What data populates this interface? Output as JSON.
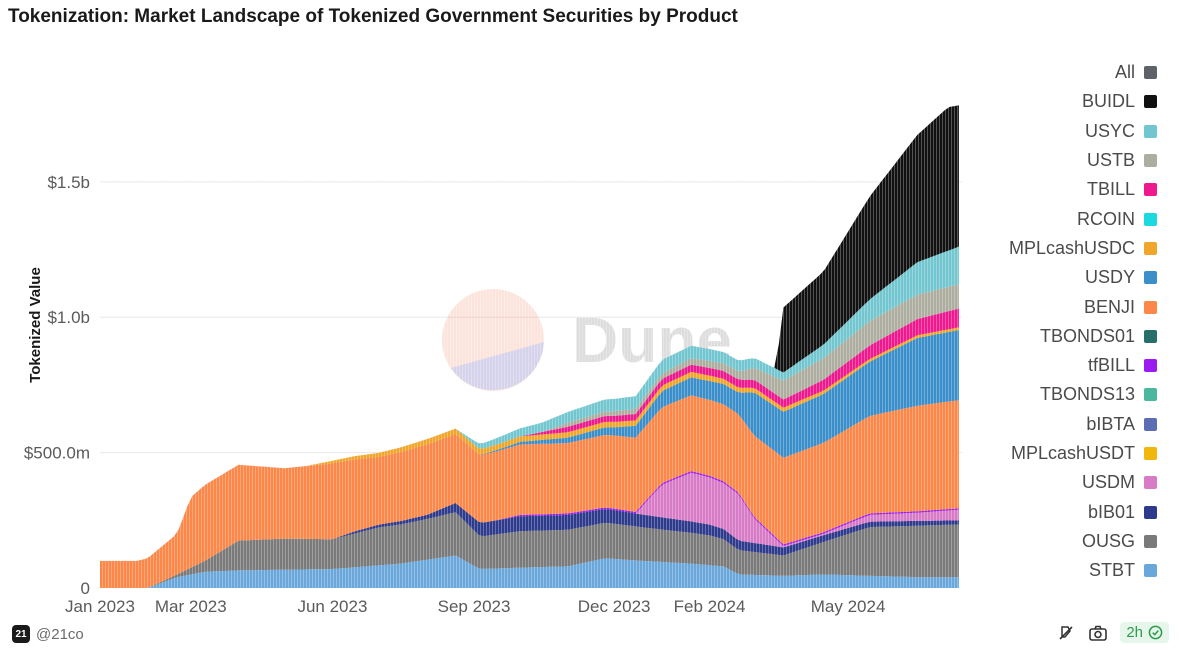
{
  "title": "Tokenization: Market Landscape of Tokenized Government Securities by Product",
  "footer": {
    "handle": "@21co",
    "logo_text": "21",
    "refresh": "2h"
  },
  "watermark": "Dune",
  "chart_data": {
    "type": "area",
    "stacked": true,
    "ylabel": "Tokenized Value",
    "ylim": [
      0,
      1950000000
    ],
    "y_ticks": [
      {
        "value": 0,
        "label": "0"
      },
      {
        "value": 500000000,
        "label": "$500.0m"
      },
      {
        "value": 1000000000,
        "label": "$1.0b"
      },
      {
        "value": 1500000000,
        "label": "$1.5b"
      }
    ],
    "x_ticks": [
      {
        "date": "2023-01-01",
        "label": "Jan 2023"
      },
      {
        "date": "2023-03-01",
        "label": "Mar 2023"
      },
      {
        "date": "2023-06-01",
        "label": "Jun 2023"
      },
      {
        "date": "2023-09-01",
        "label": "Sep 2023"
      },
      {
        "date": "2023-12-01",
        "label": "Dec 2023"
      },
      {
        "date": "2024-02-01",
        "label": "Feb 2024"
      },
      {
        "date": "2024-05-01",
        "label": "May 2024"
      }
    ],
    "xlim": [
      "2023-01-01",
      "2024-07-14"
    ],
    "grid": "horizontal",
    "legend_position": "right",
    "legend": [
      {
        "name": "All",
        "color": "#5f6268"
      },
      {
        "name": "BUIDL",
        "color": "#111111"
      },
      {
        "name": "USYC",
        "color": "#72c6cf"
      },
      {
        "name": "USTB",
        "color": "#aeaea0"
      },
      {
        "name": "TBILL",
        "color": "#f0188f"
      },
      {
        "name": "RCOIN",
        "color": "#1ed8e0"
      },
      {
        "name": "MPLcashUSDC",
        "color": "#f0a62b"
      },
      {
        "name": "USDY",
        "color": "#3a8ec9"
      },
      {
        "name": "BENJI",
        "color": "#fb8749"
      },
      {
        "name": "TBONDS01",
        "color": "#276f6a"
      },
      {
        "name": "tfBILL",
        "color": "#9b1bf0"
      },
      {
        "name": "TBONDS13",
        "color": "#4ab79e"
      },
      {
        "name": "bIBTA",
        "color": "#5a6db5"
      },
      {
        "name": "MPLcashUSDT",
        "color": "#f1b70f"
      },
      {
        "name": "USDM",
        "color": "#d87bc6"
      },
      {
        "name": "bIB01",
        "color": "#2e3a8c"
      },
      {
        "name": "OUSG",
        "color": "#7a7a7a"
      },
      {
        "name": "STBT",
        "color": "#6aa8dc"
      }
    ],
    "series": [
      {
        "name": "STBT",
        "color": "#6aa8dc",
        "points": [
          [
            "2023-01-01",
            0
          ],
          [
            "2023-02-01",
            0
          ],
          [
            "2023-02-20",
            40000000
          ],
          [
            "2023-03-10",
            60000000
          ],
          [
            "2023-04-01",
            65000000
          ],
          [
            "2023-06-01",
            70000000
          ],
          [
            "2023-07-15",
            90000000
          ],
          [
            "2023-08-20",
            120000000
          ],
          [
            "2023-09-05",
            70000000
          ],
          [
            "2023-10-01",
            75000000
          ],
          [
            "2023-11-01",
            80000000
          ],
          [
            "2023-11-25",
            110000000
          ],
          [
            "2023-12-20",
            100000000
          ],
          [
            "2024-01-20",
            90000000
          ],
          [
            "2024-02-10",
            80000000
          ],
          [
            "2024-02-20",
            50000000
          ],
          [
            "2024-03-20",
            45000000
          ],
          [
            "2024-04-15",
            50000000
          ],
          [
            "2024-05-15",
            45000000
          ],
          [
            "2024-06-15",
            40000000
          ],
          [
            "2024-07-14",
            40000000
          ]
        ]
      },
      {
        "name": "OUSG",
        "color": "#7a7a7a",
        "points": [
          [
            "2023-01-01",
            0
          ],
          [
            "2023-02-01",
            0
          ],
          [
            "2023-02-20",
            10000000
          ],
          [
            "2023-03-10",
            40000000
          ],
          [
            "2023-04-01",
            110000000
          ],
          [
            "2023-05-01",
            115000000
          ],
          [
            "2023-06-01",
            110000000
          ],
          [
            "2023-07-01",
            140000000
          ],
          [
            "2023-08-01",
            150000000
          ],
          [
            "2023-08-20",
            160000000
          ],
          [
            "2023-09-05",
            120000000
          ],
          [
            "2023-10-01",
            135000000
          ],
          [
            "2023-11-01",
            135000000
          ],
          [
            "2023-12-01",
            130000000
          ],
          [
            "2024-01-01",
            120000000
          ],
          [
            "2024-02-01",
            110000000
          ],
          [
            "2024-02-20",
            90000000
          ],
          [
            "2024-03-20",
            75000000
          ],
          [
            "2024-04-15",
            120000000
          ],
          [
            "2024-05-15",
            180000000
          ],
          [
            "2024-06-15",
            190000000
          ],
          [
            "2024-07-14",
            195000000
          ]
        ]
      },
      {
        "name": "bIB01",
        "color": "#2e3a8c",
        "points": [
          [
            "2023-01-01",
            0
          ],
          [
            "2023-06-01",
            0
          ],
          [
            "2023-06-15",
            8000000
          ],
          [
            "2023-08-01",
            15000000
          ],
          [
            "2023-09-05",
            50000000
          ],
          [
            "2023-10-01",
            55000000
          ],
          [
            "2023-11-01",
            55000000
          ],
          [
            "2023-12-01",
            50000000
          ],
          [
            "2024-01-01",
            45000000
          ],
          [
            "2024-02-01",
            40000000
          ],
          [
            "2024-02-20",
            35000000
          ],
          [
            "2024-03-20",
            30000000
          ],
          [
            "2024-04-15",
            25000000
          ],
          [
            "2024-05-15",
            20000000
          ],
          [
            "2024-06-15",
            18000000
          ],
          [
            "2024-07-14",
            15000000
          ]
        ]
      },
      {
        "name": "USDM",
        "color": "#d87bc6",
        "points": [
          [
            "2023-01-01",
            0
          ],
          [
            "2023-12-15",
            0
          ],
          [
            "2024-01-01",
            120000000
          ],
          [
            "2024-01-20",
            180000000
          ],
          [
            "2024-02-10",
            170000000
          ],
          [
            "2024-02-20",
            170000000
          ],
          [
            "2024-03-01",
            90000000
          ],
          [
            "2024-03-20",
            5000000
          ],
          [
            "2024-04-15",
            5000000
          ],
          [
            "2024-05-15",
            25000000
          ],
          [
            "2024-06-15",
            30000000
          ],
          [
            "2024-07-14",
            40000000
          ]
        ]
      },
      {
        "name": "tfBILL",
        "color": "#9b1bf0",
        "points": [
          [
            "2023-01-01",
            0
          ],
          [
            "2023-09-15",
            0
          ],
          [
            "2023-10-01",
            5000000
          ],
          [
            "2024-01-01",
            6000000
          ],
          [
            "2024-04-15",
            6000000
          ],
          [
            "2024-07-14",
            5000000
          ]
        ]
      },
      {
        "name": "BENJI",
        "color": "#fb8749",
        "points": [
          [
            "2023-01-01",
            100000000
          ],
          [
            "2023-01-25",
            100000000
          ],
          [
            "2023-02-01",
            110000000
          ],
          [
            "2023-02-20",
            150000000
          ],
          [
            "2023-03-01",
            260000000
          ],
          [
            "2023-03-10",
            280000000
          ],
          [
            "2023-04-01",
            280000000
          ],
          [
            "2023-05-01",
            260000000
          ],
          [
            "2023-06-01",
            280000000
          ],
          [
            "2023-07-01",
            250000000
          ],
          [
            "2023-08-01",
            260000000
          ],
          [
            "2023-09-05",
            250000000
          ],
          [
            "2023-10-01",
            260000000
          ],
          [
            "2023-11-01",
            260000000
          ],
          [
            "2023-12-01",
            270000000
          ],
          [
            "2024-01-01",
            280000000
          ],
          [
            "2024-02-01",
            280000000
          ],
          [
            "2024-02-20",
            290000000
          ],
          [
            "2024-03-20",
            320000000
          ],
          [
            "2024-04-15",
            330000000
          ],
          [
            "2024-05-15",
            360000000
          ],
          [
            "2024-06-15",
            390000000
          ],
          [
            "2024-07-14",
            400000000
          ]
        ]
      },
      {
        "name": "USDY",
        "color": "#3a8ec9",
        "points": [
          [
            "2023-01-01",
            0
          ],
          [
            "2023-09-01",
            0
          ],
          [
            "2023-11-01",
            20000000
          ],
          [
            "2023-12-01",
            30000000
          ],
          [
            "2024-01-01",
            60000000
          ],
          [
            "2024-02-01",
            70000000
          ],
          [
            "2024-02-20",
            80000000
          ],
          [
            "2024-03-01",
            160000000
          ],
          [
            "2024-03-20",
            170000000
          ],
          [
            "2024-04-15",
            180000000
          ],
          [
            "2024-05-15",
            200000000
          ],
          [
            "2024-06-15",
            250000000
          ],
          [
            "2024-07-14",
            260000000
          ]
        ]
      },
      {
        "name": "MPLcashUSDC",
        "color": "#f0a62b",
        "points": [
          [
            "2023-01-01",
            0
          ],
          [
            "2023-05-15",
            0
          ],
          [
            "2023-06-01",
            10000000
          ],
          [
            "2023-08-01",
            20000000
          ],
          [
            "2023-10-01",
            20000000
          ],
          [
            "2023-12-01",
            20000000
          ],
          [
            "2024-02-01",
            20000000
          ],
          [
            "2024-03-20",
            15000000
          ],
          [
            "2024-05-15",
            10000000
          ],
          [
            "2024-07-14",
            10000000
          ]
        ]
      },
      {
        "name": "TBILL",
        "color": "#f0188f",
        "points": [
          [
            "2023-01-01",
            0
          ],
          [
            "2023-10-01",
            0
          ],
          [
            "2023-11-01",
            20000000
          ],
          [
            "2024-01-01",
            25000000
          ],
          [
            "2024-02-20",
            30000000
          ],
          [
            "2024-03-20",
            30000000
          ],
          [
            "2024-04-15",
            40000000
          ],
          [
            "2024-05-15",
            50000000
          ],
          [
            "2024-06-15",
            60000000
          ],
          [
            "2024-07-14",
            70000000
          ]
        ]
      },
      {
        "name": "USTB",
        "color": "#aeaea0",
        "points": [
          [
            "2023-01-01",
            0
          ],
          [
            "2023-10-15",
            0
          ],
          [
            "2023-11-01",
            15000000
          ],
          [
            "2024-01-01",
            20000000
          ],
          [
            "2024-02-20",
            30000000
          ],
          [
            "2024-03-20",
            70000000
          ],
          [
            "2024-04-15",
            80000000
          ],
          [
            "2024-05-15",
            90000000
          ],
          [
            "2024-06-15",
            90000000
          ],
          [
            "2024-07-14",
            90000000
          ]
        ]
      },
      {
        "name": "USYC",
        "color": "#72c6cf",
        "points": [
          [
            "2023-01-01",
            0
          ],
          [
            "2023-08-20",
            0
          ],
          [
            "2023-09-05",
            20000000
          ],
          [
            "2023-10-01",
            30000000
          ],
          [
            "2023-11-01",
            40000000
          ],
          [
            "2023-12-01",
            45000000
          ],
          [
            "2024-01-01",
            50000000
          ],
          [
            "2024-02-20",
            40000000
          ],
          [
            "2024-03-20",
            30000000
          ],
          [
            "2024-04-15",
            50000000
          ],
          [
            "2024-05-15",
            80000000
          ],
          [
            "2024-06-15",
            120000000
          ],
          [
            "2024-07-14",
            140000000
          ]
        ]
      },
      {
        "name": "BUIDL",
        "color": "#111111",
        "points": [
          [
            "2023-01-01",
            0
          ],
          [
            "2024-03-15",
            0
          ],
          [
            "2024-03-20",
            240000000
          ],
          [
            "2024-04-15",
            270000000
          ],
          [
            "2024-05-15",
            380000000
          ],
          [
            "2024-06-15",
            470000000
          ],
          [
            "2024-07-05",
            530000000
          ],
          [
            "2024-07-14",
            520000000
          ]
        ]
      }
    ]
  }
}
